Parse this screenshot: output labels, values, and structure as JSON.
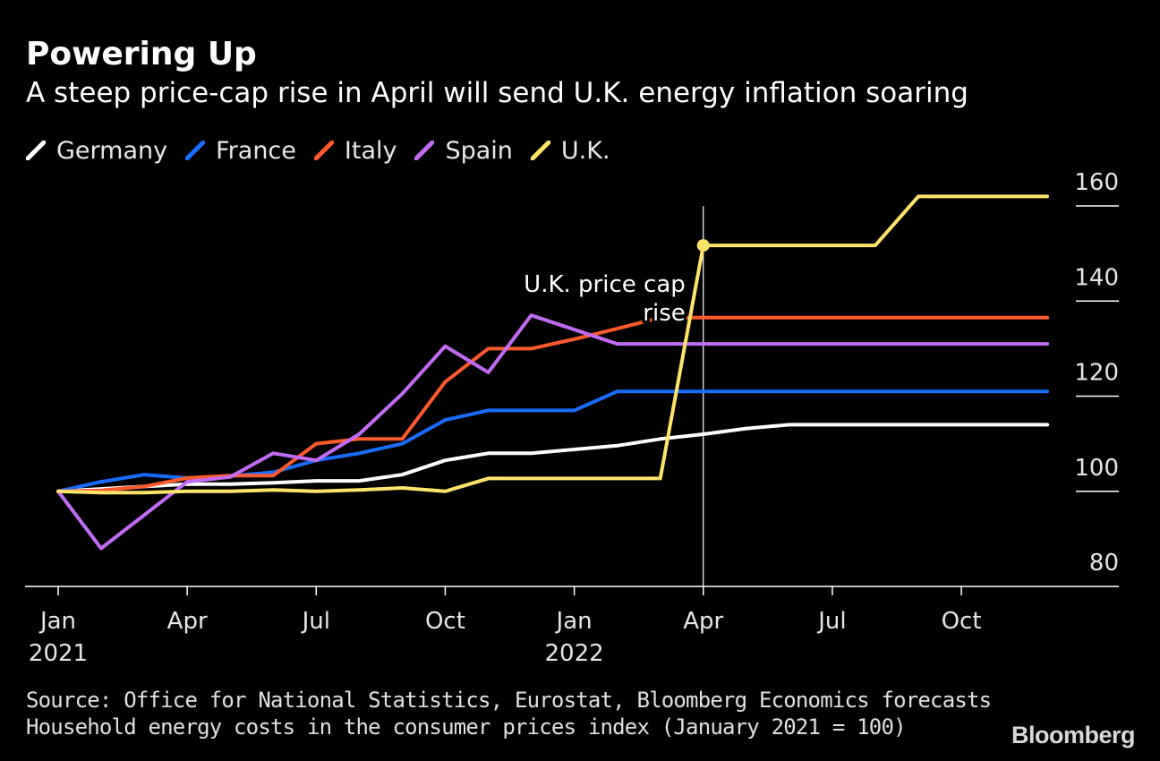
{
  "header": {
    "title": "Powering Up",
    "subtitle": "A steep price-cap rise in April will send U.K. energy inflation soaring"
  },
  "footer": {
    "source": "Source: Office for National Statistics, Eurostat, Bloomberg Economics forecasts",
    "note": "Household energy costs in the consumer prices index (January 2021 = 100)",
    "brand": "Bloomberg"
  },
  "chart_data": {
    "type": "line",
    "title": "Powering Up",
    "subtitle": "A steep price-cap rise in April will send U.K. energy inflation soaring",
    "xlabel": "",
    "ylabel": "",
    "x": [
      "2021-01",
      "2021-02",
      "2021-03",
      "2021-04",
      "2021-05",
      "2021-06",
      "2021-07",
      "2021-08",
      "2021-09",
      "2021-10",
      "2021-11",
      "2021-12",
      "2022-01",
      "2022-02",
      "2022-03",
      "2022-04",
      "2022-05",
      "2022-06",
      "2022-07",
      "2022-08",
      "2022-09",
      "2022-10",
      "2022-11",
      "2022-12"
    ],
    "x_ticks": [
      {
        "x": "2021-01",
        "label": "Jan",
        "year": "2021"
      },
      {
        "x": "2021-04",
        "label": "Apr",
        "year": ""
      },
      {
        "x": "2021-07",
        "label": "Jul",
        "year": ""
      },
      {
        "x": "2021-10",
        "label": "Oct",
        "year": ""
      },
      {
        "x": "2022-01",
        "label": "Jan",
        "year": "2022"
      },
      {
        "x": "2022-04",
        "label": "Apr",
        "year": ""
      },
      {
        "x": "2022-07",
        "label": "Jul",
        "year": ""
      },
      {
        "x": "2022-10",
        "label": "Oct",
        "year": ""
      }
    ],
    "ylim": [
      80,
      160
    ],
    "y_ticks": [
      80,
      100,
      120,
      140,
      160
    ],
    "y_axis_position": "right",
    "grid": false,
    "legend_position": "top-left",
    "series": [
      {
        "name": "Germany",
        "color": "#ffffff",
        "values": [
          100,
          100.5,
          101,
          101.5,
          101.5,
          101.8,
          102.2,
          102.2,
          103.5,
          106.5,
          108,
          108,
          108.8,
          109.6,
          111,
          112,
          113.2,
          114,
          114,
          114,
          114,
          114,
          114,
          114
        ]
      },
      {
        "name": "France",
        "color": "#1a6dff",
        "values": [
          100,
          102,
          103.5,
          102.8,
          103.2,
          104,
          106.5,
          108,
          110,
          115,
          117,
          117,
          117,
          121,
          121,
          121,
          121,
          121,
          121,
          121,
          121,
          121,
          121,
          121
        ]
      },
      {
        "name": "Italy",
        "color": "#ff5a2d",
        "values": [
          100,
          100.2,
          101,
          102.8,
          103.3,
          103.3,
          110,
          111,
          111,
          123,
          130,
          130,
          132,
          134.2,
          136.5,
          136.5,
          136.5,
          136.5,
          136.5,
          136.5,
          136.5,
          136.5,
          136.5,
          136.5
        ]
      },
      {
        "name": "Spain",
        "color": "#c26cf5",
        "values": [
          100,
          88,
          95,
          102,
          103,
          108,
          106.5,
          112,
          120.5,
          130.5,
          125,
          137,
          134,
          131,
          131,
          131,
          131,
          131,
          131,
          131,
          131,
          131,
          131,
          131
        ]
      },
      {
        "name": "U.K.",
        "color": "#ffe46b",
        "values": [
          100,
          99.7,
          99.7,
          100,
          100,
          100.3,
          100,
          100.3,
          100.7,
          100,
          102.7,
          102.7,
          102.7,
          102.7,
          102.7,
          151.7,
          151.7,
          151.7,
          151.7,
          151.7,
          162,
          162,
          162,
          162
        ]
      }
    ],
    "annotations": [
      {
        "text_line1": "U.K. price cap",
        "text_line2": "rise",
        "x": "2022-04",
        "y": 151.7,
        "series": "U.K."
      }
    ]
  }
}
